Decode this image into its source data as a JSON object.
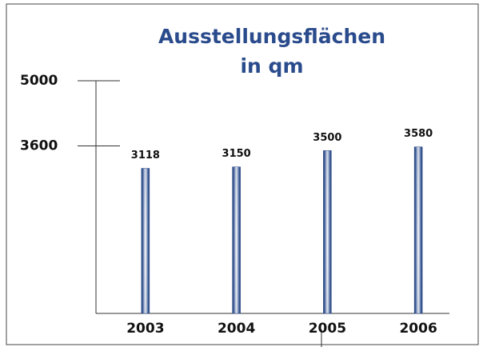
{
  "chart_data": {
    "type": "bar",
    "title": [
      "Ausstellungsflächen",
      "in qm"
    ],
    "categories": [
      "2003",
      "2004",
      "2005",
      "2006"
    ],
    "values": [
      3118,
      3150,
      3500,
      3580
    ],
    "color": "#2b4a86",
    "ylim": [
      0,
      5000
    ],
    "yticks": [
      3600,
      5000
    ],
    "grid": false
  }
}
